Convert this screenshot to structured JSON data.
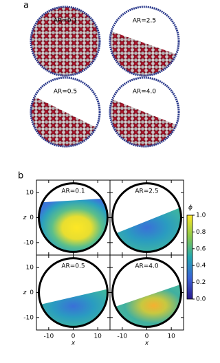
{
  "panel_a": {
    "label": "a",
    "titles": [
      "AR=0.1",
      "AR=2.5",
      "AR=0.5",
      "AR=4.0"
    ]
  },
  "chart_data": {
    "type": "heatmap",
    "label": "b",
    "titles": [
      "AR=0.1",
      "AR=2.5",
      "AR=0.5",
      "AR=4.0"
    ],
    "xlabel": "x",
    "ylabel": "z",
    "xlim": [
      -15,
      15
    ],
    "ylim": [
      -15,
      15
    ],
    "xticks": [
      -10,
      0,
      10
    ],
    "yticks": [
      -10,
      0,
      10
    ],
    "colorbar": {
      "label": "ϕ",
      "lim": [
        0,
        1
      ],
      "ticks": [
        {
          "value": 0,
          "label": "0.0"
        },
        {
          "value": 0.2,
          "label": "0.2"
        },
        {
          "value": 0.4,
          "label": "0.4"
        },
        {
          "value": 0.6,
          "label": "0.6"
        },
        {
          "value": 0.8,
          "label": "0.8"
        },
        {
          "value": 1,
          "label": "1.0"
        }
      ]
    }
  }
}
